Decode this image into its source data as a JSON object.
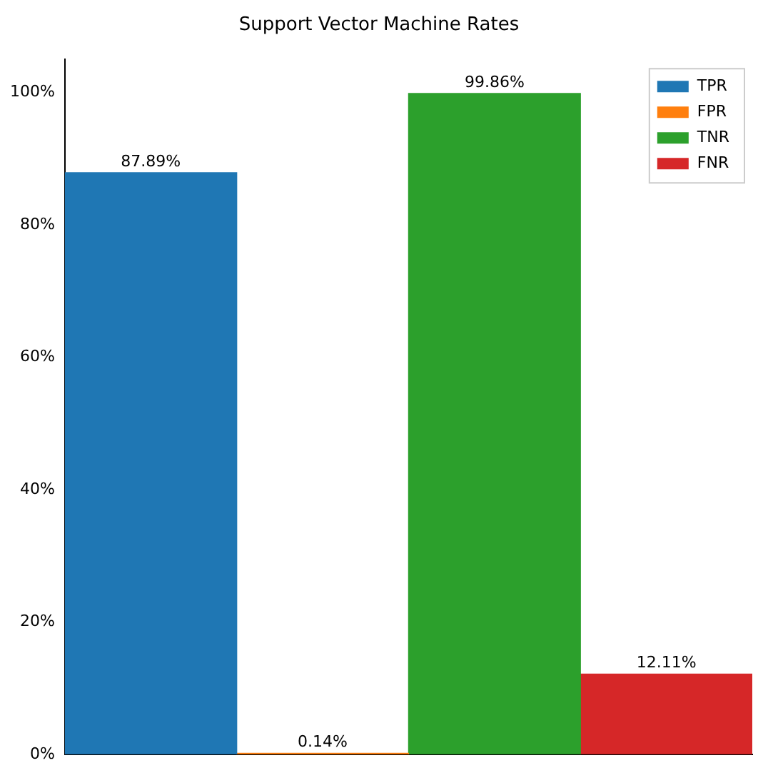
{
  "chart_data": {
    "type": "bar",
    "title": "Support Vector Machine Rates",
    "categories": [
      null,
      null,
      null,
      null
    ],
    "series": [
      {
        "name": "TPR",
        "color": "#1f77b4",
        "values": [
          87.89,
          null,
          null,
          null
        ],
        "value_labels": [
          "87.89%",
          null,
          null,
          null
        ]
      },
      {
        "name": "FPR",
        "color": "#ff7f0e",
        "values": [
          null,
          0.14,
          null,
          null
        ],
        "value_labels": [
          null,
          "0.14%",
          null,
          null
        ]
      },
      {
        "name": "TNR",
        "color": "#2ca02c",
        "values": [
          null,
          null,
          99.86,
          null
        ],
        "value_labels": [
          null,
          null,
          "99.86%",
          null
        ]
      },
      {
        "name": "FNR",
        "color": "#d62728",
        "values": [
          null,
          null,
          null,
          12.11
        ],
        "value_labels": [
          null,
          null,
          null,
          "12.11%"
        ]
      }
    ],
    "ylim": [
      0,
      105
    ],
    "yticks": [
      {
        "value": 0,
        "label": "0%"
      },
      {
        "value": 20,
        "label": "20%"
      },
      {
        "value": 40,
        "label": "40%"
      },
      {
        "value": 60,
        "label": "60%"
      },
      {
        "value": 80,
        "label": "80%"
      },
      {
        "value": 100,
        "label": "100%"
      }
    ],
    "grid": false,
    "legend": "top right",
    "tick_labels": "y"
  }
}
